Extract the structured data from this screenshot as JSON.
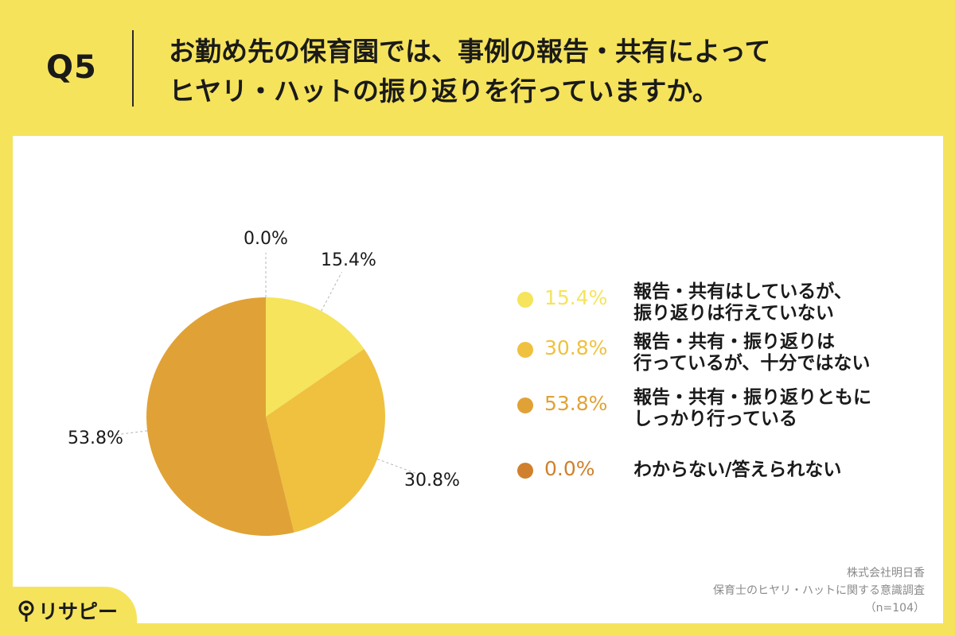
{
  "header": {
    "question_label": "Q5",
    "question_line1": "お勤め先の保育園では、事例の報告・共有によって",
    "question_line2": "ヒヤリ・ハットの振り返りを行っていますか。"
  },
  "chart_data": {
    "type": "pie",
    "title": "",
    "slices": [
      {
        "label_line1": "報告・共有はしているが、",
        "label_line2": "振り返りは行えていない",
        "value": 15.4,
        "value_text": "15.4%",
        "color": "#f5e45c"
      },
      {
        "label_line1": "報告・共有・振り返りは",
        "label_line2": "行っているが、十分ではない",
        "value": 30.8,
        "value_text": "30.8%",
        "color": "#efc13f"
      },
      {
        "label_line1": "報告・共有・振り返りともに",
        "label_line2": "しっかり行っている",
        "value": 53.8,
        "value_text": "53.8%",
        "color": "#e0a236"
      },
      {
        "label_line1": "わからない/答えられない",
        "label_line2": "",
        "value": 0.0,
        "value_text": "0.0%",
        "color": "#d0802c"
      }
    ],
    "legend_position": "right"
  },
  "footer": {
    "company": "株式会社明日香",
    "survey": "保育士のヒヤリ・ハットに関する意識調査",
    "sample": "（n=104）"
  },
  "brand": {
    "name": "リサピー",
    "icon": "pin-icon",
    "color": "#f5e35c"
  }
}
